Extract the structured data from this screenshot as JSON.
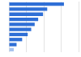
{
  "chart_data": {
    "type": "bar",
    "orientation": "horizontal",
    "categories": [
      null,
      null,
      null,
      null,
      null,
      null,
      null,
      null,
      null,
      null
    ],
    "values": [
      79,
      55,
      49,
      42,
      37,
      32,
      27,
      19,
      11,
      7
    ],
    "colors": [
      "#2f6fd6",
      "#2f6fd6",
      "#2f6fd6",
      "#2f6fd6",
      "#2f6fd6",
      "#2f6fd6",
      "#2f6fd6",
      "#2f6fd6",
      "#2f6fd6",
      "#a9c4ee"
    ],
    "xlim": [
      0,
      100
    ],
    "xticks": [
      0,
      25,
      50,
      75,
      100
    ],
    "grid": true,
    "tick_labels": false
  }
}
